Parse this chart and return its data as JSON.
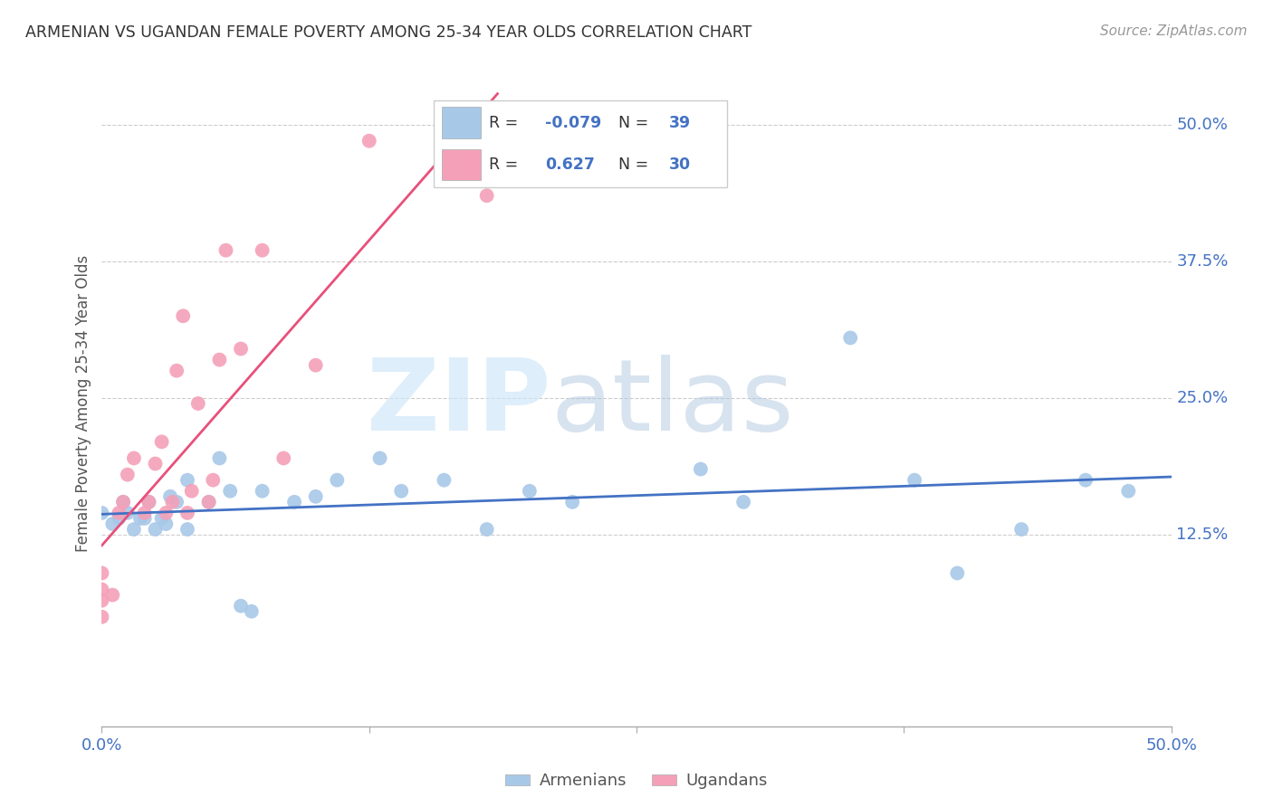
{
  "title": "ARMENIAN VS UGANDAN FEMALE POVERTY AMONG 25-34 YEAR OLDS CORRELATION CHART",
  "source": "Source: ZipAtlas.com",
  "ylabel": "Female Poverty Among 25-34 Year Olds",
  "xlim": [
    0.0,
    0.5
  ],
  "ylim": [
    -0.05,
    0.54
  ],
  "yticks": [
    0.125,
    0.25,
    0.375,
    0.5
  ],
  "yticklabels": [
    "12.5%",
    "25.0%",
    "37.5%",
    "50.0%"
  ],
  "xtick_positions": [
    0.0,
    0.125,
    0.25,
    0.375,
    0.5
  ],
  "xticklabels": [
    "0.0%",
    "",
    "",
    "",
    "50.0%"
  ],
  "legend_r_armenian": "-0.079",
  "legend_n_armenian": "39",
  "legend_r_ugandan": "0.627",
  "legend_n_ugandan": "30",
  "color_armenian": "#a8c8e8",
  "color_ugandan": "#f4a0b8",
  "line_color_armenian": "#4472c4",
  "line_color_ugandan": "#e8507a",
  "watermark_zip": "ZIP",
  "watermark_atlas": "atlas",
  "armenian_x": [
    0.0,
    0.005,
    0.008,
    0.01,
    0.012,
    0.015,
    0.018,
    0.02,
    0.022,
    0.025,
    0.028,
    0.03,
    0.032,
    0.035,
    0.04,
    0.04,
    0.05,
    0.055,
    0.06,
    0.065,
    0.07,
    0.075,
    0.09,
    0.1,
    0.11,
    0.13,
    0.14,
    0.16,
    0.18,
    0.2,
    0.22,
    0.28,
    0.3,
    0.35,
    0.38,
    0.4,
    0.43,
    0.46,
    0.48
  ],
  "armenian_y": [
    0.145,
    0.135,
    0.14,
    0.155,
    0.145,
    0.13,
    0.14,
    0.14,
    0.155,
    0.13,
    0.14,
    0.135,
    0.16,
    0.155,
    0.13,
    0.175,
    0.155,
    0.195,
    0.165,
    0.06,
    0.055,
    0.165,
    0.155,
    0.16,
    0.175,
    0.195,
    0.165,
    0.175,
    0.13,
    0.165,
    0.155,
    0.185,
    0.155,
    0.305,
    0.175,
    0.09,
    0.13,
    0.175,
    0.165
  ],
  "ugandan_x": [
    0.0,
    0.0,
    0.0,
    0.0,
    0.005,
    0.008,
    0.01,
    0.012,
    0.015,
    0.02,
    0.022,
    0.025,
    0.028,
    0.03,
    0.033,
    0.035,
    0.038,
    0.04,
    0.042,
    0.045,
    0.05,
    0.052,
    0.055,
    0.058,
    0.065,
    0.075,
    0.085,
    0.1,
    0.125,
    0.18
  ],
  "ugandan_y": [
    0.05,
    0.065,
    0.09,
    0.075,
    0.07,
    0.145,
    0.155,
    0.18,
    0.195,
    0.145,
    0.155,
    0.19,
    0.21,
    0.145,
    0.155,
    0.275,
    0.325,
    0.145,
    0.165,
    0.245,
    0.155,
    0.175,
    0.285,
    0.385,
    0.295,
    0.385,
    0.195,
    0.28,
    0.485,
    0.435
  ]
}
